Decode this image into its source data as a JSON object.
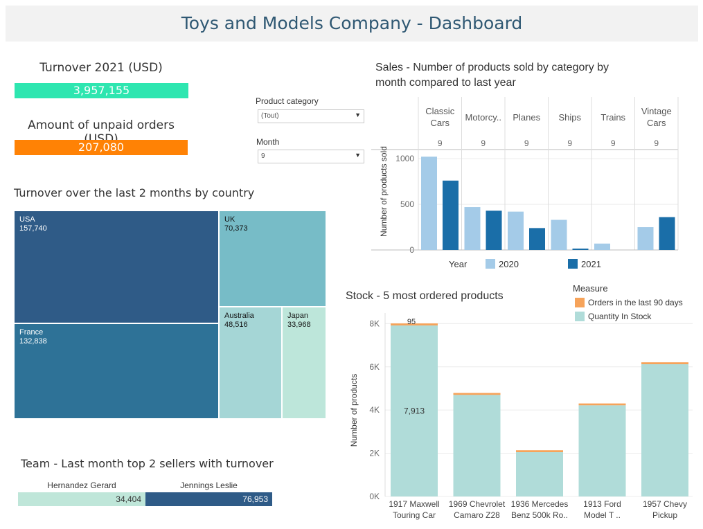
{
  "header": {
    "title": "Toys and Models Company - Dashboard"
  },
  "kpis": {
    "turnover": {
      "label": "Turnover 2021 (USD)",
      "value": "3,957,155",
      "color": "#2ee6b0"
    },
    "unpaid": {
      "label": "Amount of unpaid orders (USD)",
      "value": "207,080",
      "color": "#ff8205"
    }
  },
  "filters": {
    "category": {
      "label": "Product category",
      "value": "(Tout)"
    },
    "month": {
      "label": "Month",
      "value": "9"
    }
  },
  "treemap": {
    "title": "Turnover over the last 2 months by country",
    "items": [
      {
        "name": "USA",
        "value": "157,740",
        "color": "#2f5b87"
      },
      {
        "name": "France",
        "value": "132,838",
        "color": "#2e7297"
      },
      {
        "name": "UK",
        "value": "70,373",
        "color": "#77bcc7"
      },
      {
        "name": "Australia",
        "value": "48,516",
        "color": "#a5d6d6"
      },
      {
        "name": "Japan",
        "value": "33,968",
        "color": "#bde6da"
      }
    ]
  },
  "team": {
    "title": "Team - Last month top 2 sellers with turnover",
    "sellers": [
      {
        "name": "Hernandez Gerard",
        "value": "34,404",
        "color": "#bfe6d9"
      },
      {
        "name": "Jennings Leslie",
        "value": "76,953",
        "color": "#2f5b87"
      }
    ]
  },
  "chart_data": [
    {
      "type": "bar",
      "title": "Sales - Number of products sold by category by month compared to last year",
      "categories": [
        "Classic Cars",
        "Motorcy..",
        "Planes",
        "Ships",
        "Trains",
        "Vintage Cars"
      ],
      "month_labels": [
        "9",
        "9",
        "9",
        "9",
        "9",
        "9"
      ],
      "series": [
        {
          "name": "2020",
          "values": [
            1022,
            470,
            420,
            330,
            70,
            250
          ],
          "color": "#a4cbe8"
        },
        {
          "name": "2021",
          "values": [
            760,
            430,
            240,
            15,
            0,
            360
          ],
          "color": "#1a6ea8"
        }
      ],
      "ylabel": "Number of products sold",
      "ylim": [
        0,
        1100
      ],
      "yticks": [
        "0",
        "500",
        "1000"
      ],
      "legend_title": "Year",
      "legend_position": "bottom"
    },
    {
      "type": "bar",
      "stacked": true,
      "title": "Stock - 5 most ordered products",
      "categories": [
        "1917 Maxwell Touring Car",
        "1969 Chevrolet Camaro Z28",
        "1936 Mercedes Benz 500k Ro..",
        "1913 Ford Model T ..",
        "1957 Chevy Pickup"
      ],
      "category_lines": [
        [
          "1917 Maxwell",
          "Touring Car"
        ],
        [
          "1969 Chevrolet",
          "Camaro Z28"
        ],
        [
          "1936 Mercedes",
          "Benz 500k Ro.."
        ],
        [
          "1913 Ford",
          "Model T .."
        ],
        [
          "1957 Chevy",
          "Pickup"
        ]
      ],
      "series": [
        {
          "name": "Quantity In Stock",
          "values": [
            7913,
            4700,
            2050,
            4220,
            6120
          ],
          "color": "#b0dcd9"
        },
        {
          "name": "Orders in the last 90 days",
          "values": [
            95,
            90,
            90,
            85,
            90
          ],
          "color": "#f6a35a"
        }
      ],
      "data_labels": {
        "stock_first": "7,913",
        "orders_first": "95"
      },
      "ylabel": "Number of products",
      "ylim": [
        0,
        8300
      ],
      "yticks": [
        "0K",
        "2K",
        "4K",
        "6K",
        "8K"
      ],
      "legend_title": "Measure",
      "legend_position": "top-right"
    }
  ]
}
